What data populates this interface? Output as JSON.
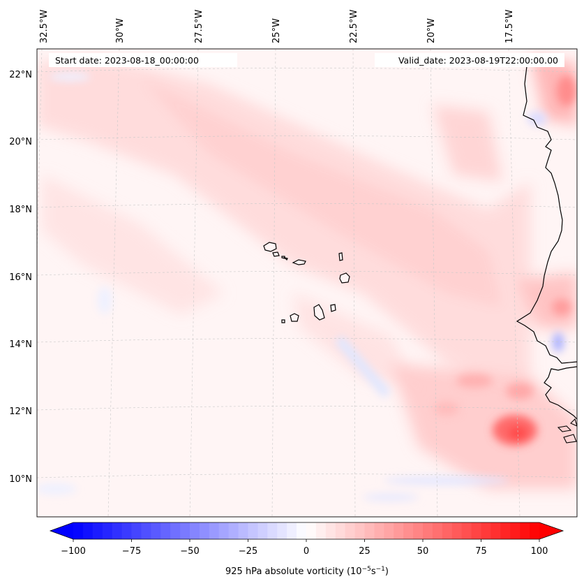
{
  "header": {
    "start_date": "Start date: 2023-08-18_00:00:00",
    "valid_date": "Valid_date: 2023-08-19T22:00:00.00"
  },
  "map": {
    "lon_labels": [
      "32.5°W",
      "30°W",
      "27.5°W",
      "25°W",
      "22.5°W",
      "20°W",
      "17.5°W"
    ],
    "lat_labels": [
      "22°N",
      "20°N",
      "18°N",
      "16°N",
      "14°N",
      "12°N",
      "10°N"
    ]
  },
  "colorbar": {
    "tick_labels": [
      "−100",
      "−75",
      "−50",
      "−25",
      "0",
      "25",
      "50",
      "75",
      "100"
    ],
    "title_main": "925 hPa absolute vorticity (10",
    "title_exp1": "−5",
    "title_mid": "s",
    "title_exp2": "−1",
    "title_end": ")",
    "vmin": -100,
    "vmax": 100,
    "levels": 48,
    "colors": {
      "negative": "#0000ff",
      "zero": "#ffffff",
      "positive": "#ff0000"
    }
  }
}
